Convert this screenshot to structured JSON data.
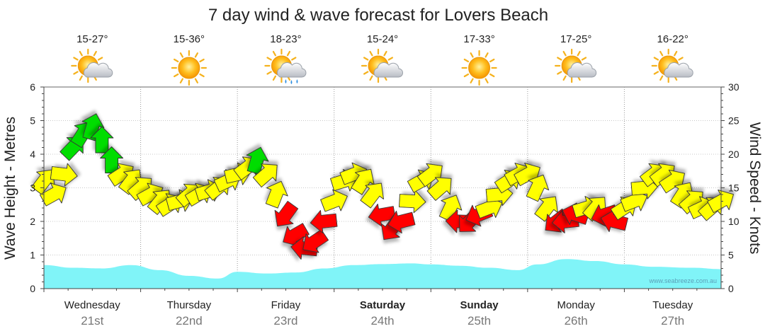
{
  "chart_data": {
    "type": "line",
    "title": "7 day wind & wave forecast for Lovers Beach",
    "ylabel_left": "Wave Height - Metres",
    "ylabel_right": "Wind Speed - Knots",
    "ylim_left": [
      0,
      6
    ],
    "ylim_right": [
      0,
      30
    ],
    "left_ticks": [
      "0",
      "1",
      "2",
      "3",
      "4",
      "5",
      "6"
    ],
    "right_ticks": [
      "0",
      "5",
      "10",
      "15",
      "20",
      "25",
      "30"
    ],
    "days": [
      {
        "name": "Wednesday",
        "date": "21st",
        "temp": "15-27°",
        "icon": "partly-cloudy-icon",
        "bold": false
      },
      {
        "name": "Thursday",
        "date": "22nd",
        "temp": "15-36°",
        "icon": "sunny-icon",
        "bold": false
      },
      {
        "name": "Friday",
        "date": "23rd",
        "temp": "18-23°",
        "icon": "showers-icon",
        "bold": false
      },
      {
        "name": "Saturday",
        "date": "24th",
        "temp": "15-24°",
        "icon": "partly-cloudy-icon",
        "bold": true
      },
      {
        "name": "Sunday",
        "date": "25th",
        "temp": "17-33°",
        "icon": "sunny-icon",
        "bold": true
      },
      {
        "name": "Monday",
        "date": "26th",
        "temp": "17-25°",
        "icon": "partly-cloudy-icon",
        "bold": false
      },
      {
        "name": "Tuesday",
        "date": "27th",
        "temp": "16-22°",
        "icon": "partly-cloudy-icon",
        "bold": false
      }
    ],
    "wave_height": {
      "name": "Wave Height",
      "x": [
        0,
        0.3,
        0.6,
        0.9,
        1.2,
        1.5,
        1.8,
        2.0,
        2.3,
        2.6,
        2.9,
        3.2,
        3.5,
        3.8,
        4.0,
        4.3,
        4.6,
        4.9,
        5.1,
        5.4,
        5.7,
        6.0,
        6.3,
        6.7,
        7.0
      ],
      "values": [
        0.7,
        0.62,
        0.6,
        0.7,
        0.55,
        0.38,
        0.3,
        0.5,
        0.45,
        0.48,
        0.6,
        0.7,
        0.73,
        0.75,
        0.72,
        0.68,
        0.62,
        0.55,
        0.72,
        0.88,
        0.82,
        0.72,
        0.65,
        0.62,
        0.58
      ]
    },
    "wind_speed": {
      "name": "Wind Speed (knots)",
      "x": [
        0,
        0.1,
        0.2,
        0.3,
        0.4,
        0.5,
        0.6,
        0.7,
        0.8,
        0.9,
        1.0,
        1.1,
        1.2,
        1.3,
        1.4,
        1.5,
        1.6,
        1.7,
        1.8,
        1.9,
        2.0,
        2.1,
        2.2,
        2.3,
        2.4,
        2.5,
        2.6,
        2.7,
        2.8,
        2.9,
        3.0,
        3.1,
        3.2,
        3.3,
        3.4,
        3.5,
        3.6,
        3.7,
        3.8,
        3.9,
        4.0,
        4.1,
        4.2,
        4.3,
        4.4,
        4.5,
        4.6,
        4.7,
        4.8,
        4.9,
        5.0,
        5.1,
        5.2,
        5.3,
        5.4,
        5.5,
        5.6,
        5.7,
        5.8,
        5.9,
        6.0,
        6.1,
        6.2,
        6.3,
        6.4,
        6.5,
        6.6,
        6.7,
        6.8,
        6.9,
        7.0
      ],
      "values": [
        16,
        14,
        17,
        21,
        23,
        24,
        22,
        19,
        17,
        16,
        15,
        14,
        13,
        12.5,
        13,
        14,
        14,
        14.5,
        15,
        16,
        17,
        18,
        19,
        17,
        14,
        11,
        8,
        6,
        7,
        10,
        13,
        16,
        17,
        16,
        14,
        11,
        9,
        10,
        13,
        16,
        17,
        15,
        12,
        10,
        10,
        11,
        12,
        14,
        16,
        17,
        17,
        15,
        12,
        10,
        10,
        11,
        12,
        12,
        11,
        10,
        12,
        13,
        15,
        17,
        17,
        16,
        14,
        13,
        12,
        12,
        13
      ]
    },
    "wind_colors": {
      "strong_offshore_green": "#00dd00",
      "moderate_yellow": "#ffff00",
      "onshore_red": "#ff0000"
    },
    "wave_color": "#80f4f8",
    "watermark": "www.seabreeze.com.au"
  }
}
